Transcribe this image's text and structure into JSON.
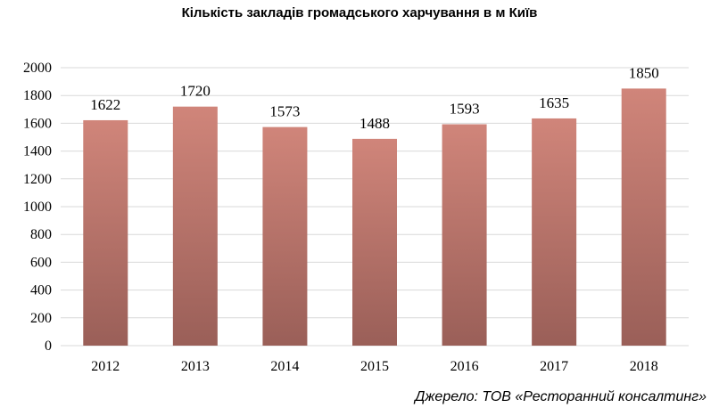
{
  "chart_data": {
    "type": "bar",
    "title": "Кількість закладів громадського харчування в м Київ",
    "categories": [
      "2012",
      "2013",
      "2014",
      "2015",
      "2016",
      "2017",
      "2018"
    ],
    "values": [
      1622,
      1720,
      1573,
      1488,
      1593,
      1635,
      1850
    ],
    "data_labels": [
      "1622",
      "1720",
      "1573",
      "1488",
      "1593",
      "1635",
      "1850"
    ],
    "ylim": [
      0,
      2000
    ],
    "y_ticks": [
      0,
      200,
      400,
      600,
      800,
      1000,
      1200,
      1400,
      1600,
      1800,
      2000
    ],
    "grid": true,
    "colors": {
      "bar_top": "#d0857a",
      "bar_bottom": "#9a5f58",
      "grid": "#d9d9d9"
    }
  },
  "source": "Джерело: ТОВ «Ресторанний консалтинг»"
}
